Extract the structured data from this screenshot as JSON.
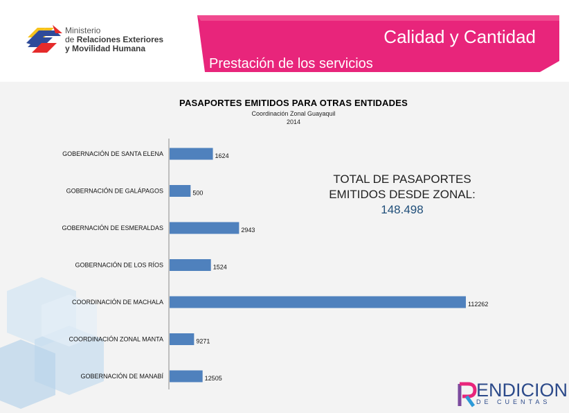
{
  "header": {
    "logo_line1": "Ministerio",
    "logo_line2_prefix": "de ",
    "logo_line2_bold": "Relaciones Exteriores",
    "logo_line3": "y Movilidad Humana",
    "banner_title": "Calidad y Cantidad",
    "banner_subtitle": "Prestación de los servicios",
    "banner_color": "#e8257b"
  },
  "annotation": {
    "total_label": "TOTAL DE PASAPORTES EMITIDOS DESDE ZONAL:",
    "total_value": "148.498"
  },
  "footer": {
    "logo_main": "ENDICION",
    "logo_sub": "DE CUENTAS"
  },
  "chart_data": {
    "type": "bar",
    "orientation": "horizontal",
    "title": "PASAPORTES EMITIDOS PARA OTRAS ENTIDADES",
    "subtitle": "Coordinación Zonal Guayaquil",
    "subtitle2": "2014",
    "categories": [
      "GOBERNACIÓN DE SANTA ELENA",
      "GOBERNACIÓN DE GALÁPAGOS",
      "GOBERNACIÓN DE ESMERALDAS",
      "GOBERNACIÓN DE LOS RÍOS",
      "COORDINACIÓN DE MACHALA",
      "COORDINACIÓN ZONAL MANTA",
      "GOBERNACIÓN DE MANABÍ"
    ],
    "values": [
      1624,
      500,
      2943,
      1524,
      112262,
      9271,
      12505
    ],
    "value_labels": [
      "1624",
      "500",
      "2943",
      "1524",
      "112262",
      "9271",
      "12505"
    ],
    "bar_color": "#4f81bd",
    "grid": false
  }
}
